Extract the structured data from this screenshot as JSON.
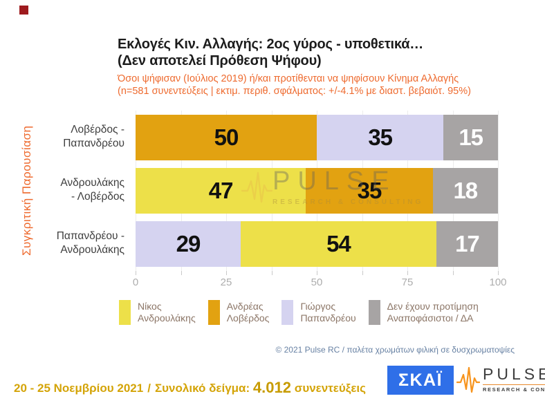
{
  "slide": {
    "corner_color": "#9E1B1E"
  },
  "header": {
    "title_line1": "Εκλογές Κιν. Αλλαγής: 2ος γύρος - υποθετικά…",
    "title_line2": "(Δεν αποτελεί Πρόθεση Ψήφου)",
    "subtitle_line1": "Όσοι ψήφισαν (Ιούλιος 2019) ή/και προτίθενται να ψηφίσουν Κίνημα Αλλαγής",
    "subtitle_line2": "(n=581 συνεντεύξεις | εκτιμ. περιθ. σφάλματος: +/-4.1% με διαστ. βεβαιότ. 95%)"
  },
  "chart_data": {
    "type": "bar",
    "orientation": "horizontal_stacked",
    "group_label": "Συγκριτική  Παρουσίαση",
    "xlim": [
      0,
      100
    ],
    "x_ticks": [
      0,
      25,
      50,
      75,
      100
    ],
    "minor_tick_step": 12.5,
    "grid": true,
    "legend_position": "bottom",
    "palette": {
      "androulakis": "#EDE049",
      "loverdos": "#E2A211",
      "papandreou": "#D5D3F0",
      "undecided": "#A7A4A4"
    },
    "categories": [
      [
        "Λοβέρδος -",
        "Παπανδρέου"
      ],
      [
        "Ανδρουλάκης",
        "- Λοβέρδος"
      ],
      [
        "Παπανδρέου -",
        "Ανδρουλάκης"
      ]
    ],
    "rows": [
      {
        "category": "Λοβέρδος - Παπανδρέου",
        "segments": [
          {
            "name": "Ανδρέας Λοβέρδος",
            "value": 50,
            "color": "#E2A211",
            "label_color": "#111111"
          },
          {
            "name": "Γιώργος Παπανδρέου",
            "value": 35,
            "color": "#D5D3F0",
            "label_color": "#111111"
          },
          {
            "name": "Δεν έχουν προτίμηση / Αναποφάσιστοι / ΔΑ",
            "value": 15,
            "color": "#A7A4A4",
            "label_color": "#FFFFFF"
          }
        ]
      },
      {
        "category": "Ανδρουλάκης - Λοβέρδος",
        "segments": [
          {
            "name": "Νίκος Ανδρουλάκης",
            "value": 47,
            "color": "#EDE049",
            "label_color": "#111111"
          },
          {
            "name": "Ανδρέας Λοβέρδος",
            "value": 35,
            "color": "#E2A211",
            "label_color": "#111111"
          },
          {
            "name": "Δεν έχουν προτίμηση / Αναποφάσιστοι / ΔΑ",
            "value": 18,
            "color": "#A7A4A4",
            "label_color": "#FFFFFF"
          }
        ]
      },
      {
        "category": "Παπανδρέου - Ανδρουλάκης",
        "segments": [
          {
            "name": "Γιώργος Παπανδρέου",
            "value": 29,
            "color": "#D5D3F0",
            "label_color": "#111111"
          },
          {
            "name": "Νίκος Ανδρουλάκης",
            "value": 54,
            "color": "#EDE049",
            "label_color": "#111111"
          },
          {
            "name": "Δεν έχουν προτίμηση / Αναποφάσιστοι / ΔΑ",
            "value": 17,
            "color": "#A7A4A4",
            "label_color": "#FFFFFF"
          }
        ]
      }
    ],
    "legend": [
      {
        "line1": "Νίκος",
        "line2": "Ανδρουλάκης",
        "color": "#EDE049"
      },
      {
        "line1": "Ανδρέας",
        "line2": "Λοβέρδος",
        "color": "#E2A211"
      },
      {
        "line1": "Γιώργος",
        "line2": "Παπανδρέου",
        "color": "#D5D3F0"
      },
      {
        "line1": "Δεν έχουν προτίμηση",
        "line2": "Αναποφάσιστοι / ΔΑ",
        "color": "#A7A4A4"
      }
    ]
  },
  "watermark": {
    "brand": "PULSE",
    "tagline": "RESEARCH & CONSULTING"
  },
  "notes": {
    "copyright": "© 2021 Pulse RC  /  παλέτα χρωμάτων φιλική σε δυσχρωματοψίες"
  },
  "footer": {
    "date_range": "20 - 25  Νοεμβρίου 2021",
    "separator": "/",
    "sample_label": "Συνολικό δείγμα:",
    "sample_value": "4.012",
    "sample_unit": "συνεντεύξεις",
    "skai_logo_text": "ΣΚΑΪ",
    "pulse_brand": "PULSE",
    "pulse_tagline": "RESEARCH & CONSULTING"
  }
}
